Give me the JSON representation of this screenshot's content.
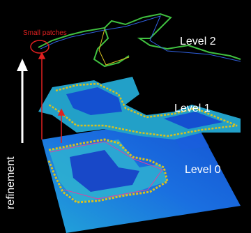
{
  "labels": {
    "small_patches": "Small patches",
    "level_2": "Level 2",
    "level_1": "Level 1",
    "level_0": "Level 0",
    "refinement": "refinement"
  }
}
